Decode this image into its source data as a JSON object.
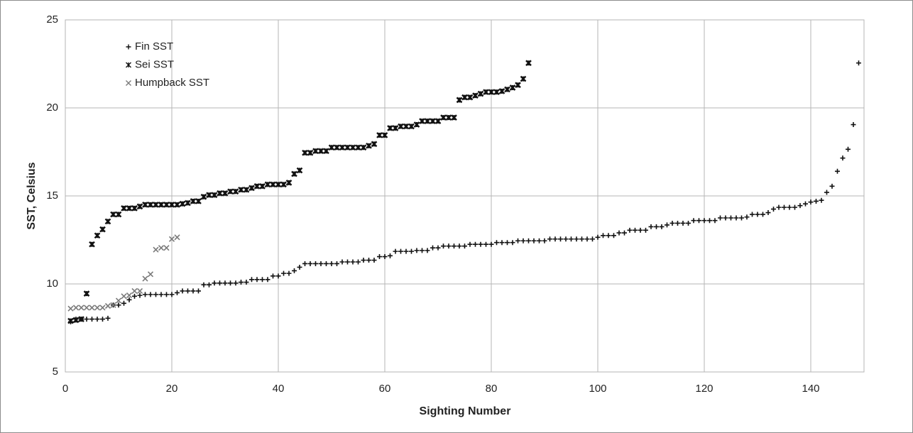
{
  "chart_data": {
    "type": "scatter",
    "x_label": "Sighting Number",
    "y_label": "SST, Celsius",
    "xlim": [
      0,
      150
    ],
    "xticks": [
      0,
      20,
      40,
      60,
      80,
      100,
      120,
      140
    ],
    "ylim": [
      5,
      25
    ],
    "yticks": [
      5,
      10,
      15,
      20,
      25
    ],
    "grid": true,
    "legend": "top-left",
    "series": [
      {
        "name": "Fin SST",
        "color": "#111111",
        "marker": "plus",
        "x": [
          1,
          2,
          3,
          4,
          5,
          6,
          7,
          8,
          9,
          10,
          11,
          12,
          13,
          14,
          15,
          16,
          17,
          18,
          19,
          20,
          21,
          22,
          23,
          24,
          25,
          26,
          27,
          28,
          29,
          30,
          31,
          32,
          33,
          34,
          35,
          36,
          37,
          38,
          39,
          40,
          41,
          42,
          43,
          44,
          45,
          46,
          47,
          48,
          49,
          50,
          51,
          52,
          53,
          54,
          55,
          56,
          57,
          58,
          59,
          60,
          61,
          62,
          63,
          64,
          65,
          66,
          67,
          68,
          69,
          70,
          71,
          72,
          73,
          74,
          75,
          76,
          77,
          78,
          79,
          80,
          81,
          82,
          83,
          84,
          85,
          86,
          87,
          88,
          89,
          90,
          91,
          92,
          93,
          94,
          95,
          96,
          97,
          98,
          99,
          100,
          101,
          102,
          103,
          104,
          105,
          106,
          107,
          108,
          109,
          110,
          111,
          112,
          113,
          114,
          115,
          116,
          117,
          118,
          119,
          120,
          121,
          122,
          123,
          124,
          125,
          126,
          127,
          128,
          129,
          130,
          131,
          132,
          133,
          134,
          135,
          136,
          137,
          138,
          139,
          140,
          141,
          142,
          143,
          144,
          145,
          146,
          147,
          148,
          149
        ],
        "values": [
          7.85,
          8.0,
          8.0,
          8.0,
          8.0,
          8.0,
          8.0,
          8.05,
          8.8,
          8.8,
          8.9,
          9.1,
          9.3,
          9.35,
          9.4,
          9.4,
          9.4,
          9.4,
          9.4,
          9.4,
          9.5,
          9.6,
          9.6,
          9.6,
          9.6,
          9.95,
          9.95,
          10.05,
          10.05,
          10.05,
          10.05,
          10.05,
          10.1,
          10.1,
          10.25,
          10.25,
          10.25,
          10.25,
          10.45,
          10.45,
          10.6,
          10.6,
          10.75,
          10.95,
          11.15,
          11.15,
          11.15,
          11.15,
          11.15,
          11.15,
          11.15,
          11.25,
          11.25,
          11.25,
          11.25,
          11.35,
          11.35,
          11.35,
          11.55,
          11.55,
          11.6,
          11.85,
          11.85,
          11.85,
          11.85,
          11.9,
          11.9,
          11.9,
          12.05,
          12.05,
          12.15,
          12.15,
          12.15,
          12.15,
          12.15,
          12.25,
          12.25,
          12.25,
          12.25,
          12.25,
          12.35,
          12.35,
          12.35,
          12.35,
          12.45,
          12.45,
          12.45,
          12.45,
          12.45,
          12.45,
          12.55,
          12.55,
          12.55,
          12.55,
          12.55,
          12.55,
          12.55,
          12.55,
          12.55,
          12.65,
          12.75,
          12.75,
          12.75,
          12.9,
          12.9,
          13.05,
          13.05,
          13.05,
          13.05,
          13.25,
          13.25,
          13.25,
          13.35,
          13.45,
          13.45,
          13.45,
          13.45,
          13.6,
          13.6,
          13.6,
          13.6,
          13.6,
          13.75,
          13.75,
          13.75,
          13.75,
          13.75,
          13.8,
          13.95,
          13.95,
          13.95,
          14.05,
          14.25,
          14.35,
          14.35,
          14.35,
          14.35,
          14.45,
          14.55,
          14.65,
          14.7,
          14.75,
          15.2,
          15.55,
          16.4,
          17.15,
          17.65,
          19.05,
          22.55
        ]
      },
      {
        "name": "Sei SST",
        "color": "#111111",
        "marker": "star",
        "x": [
          1,
          2,
          3,
          4,
          5,
          6,
          7,
          8,
          9,
          10,
          11,
          12,
          13,
          14,
          15,
          16,
          17,
          18,
          19,
          20,
          21,
          22,
          23,
          24,
          25,
          26,
          27,
          28,
          29,
          30,
          31,
          32,
          33,
          34,
          35,
          36,
          37,
          38,
          39,
          40,
          41,
          42,
          43,
          44,
          45,
          46,
          47,
          48,
          49,
          50,
          51,
          52,
          53,
          54,
          55,
          56,
          57,
          58,
          59,
          60,
          61,
          62,
          63,
          64,
          65,
          66,
          67,
          68,
          69,
          70,
          71,
          72,
          73,
          74,
          75,
          76,
          77,
          78,
          79,
          80,
          81,
          82,
          83,
          84,
          85,
          86,
          87
        ],
        "values": [
          7.9,
          7.95,
          8.0,
          9.45,
          12.25,
          12.75,
          13.1,
          13.55,
          13.95,
          13.95,
          14.3,
          14.3,
          14.3,
          14.4,
          14.5,
          14.5,
          14.5,
          14.5,
          14.5,
          14.5,
          14.5,
          14.55,
          14.6,
          14.7,
          14.7,
          14.95,
          15.05,
          15.05,
          15.15,
          15.15,
          15.25,
          15.25,
          15.35,
          15.35,
          15.45,
          15.55,
          15.55,
          15.65,
          15.65,
          15.65,
          15.65,
          15.75,
          16.25,
          16.45,
          17.45,
          17.45,
          17.55,
          17.55,
          17.55,
          17.75,
          17.75,
          17.75,
          17.75,
          17.75,
          17.75,
          17.75,
          17.85,
          17.95,
          18.45,
          18.45,
          18.85,
          18.85,
          18.95,
          18.95,
          18.95,
          19.05,
          19.25,
          19.25,
          19.25,
          19.25,
          19.45,
          19.45,
          19.45,
          20.45,
          20.6,
          20.6,
          20.7,
          20.8,
          20.9,
          20.9,
          20.9,
          20.95,
          21.05,
          21.15,
          21.3,
          21.65,
          22.55
        ]
      },
      {
        "name": "Humpback SST",
        "color": "#7a7a7a",
        "marker": "cross",
        "x": [
          1,
          2,
          3,
          4,
          5,
          6,
          7,
          8,
          9,
          10,
          11,
          12,
          13,
          14,
          15,
          16,
          17,
          18,
          19,
          20,
          21
        ],
        "values": [
          8.6,
          8.65,
          8.65,
          8.65,
          8.65,
          8.65,
          8.65,
          8.75,
          8.8,
          9.05,
          9.3,
          9.35,
          9.6,
          9.6,
          10.3,
          10.55,
          11.95,
          12.05,
          12.05,
          12.55,
          12.65
        ]
      }
    ]
  }
}
